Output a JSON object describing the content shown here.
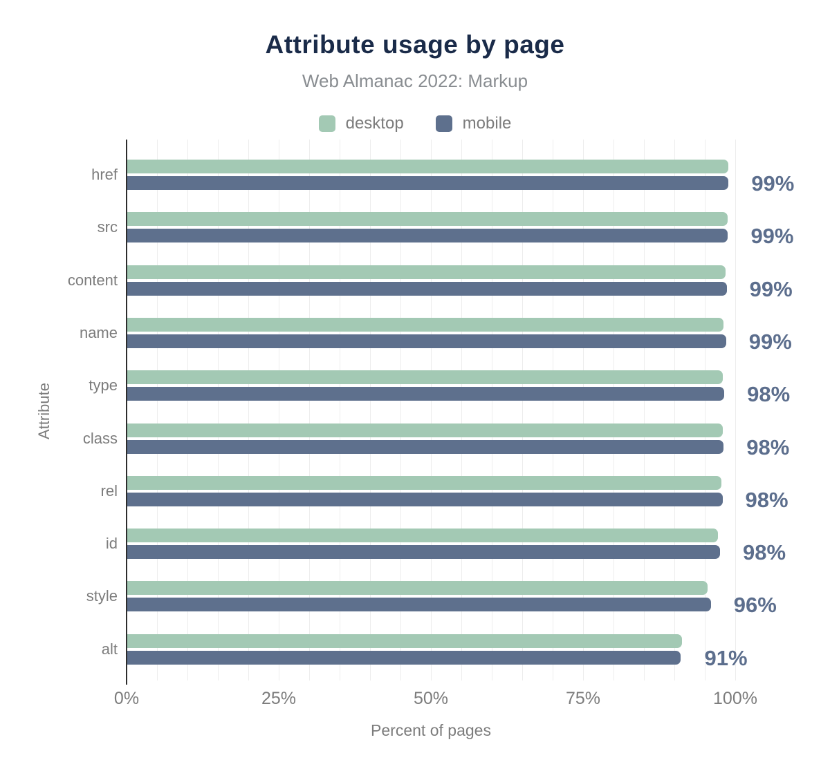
{
  "title": "Attribute usage by page",
  "subtitle": "Web Almanac 2022: Markup",
  "legend": {
    "items": [
      {
        "label": "desktop",
        "color": "#a3c9b4"
      },
      {
        "label": "mobile",
        "color": "#5e708d"
      }
    ]
  },
  "colors": {
    "desktop_bar": "#a3c9b4",
    "mobile_bar": "#5e708d",
    "value_label": "#5c6e8d",
    "title_text": "#1a2b49",
    "axis_text": "#7c7c7c",
    "gridline": "#ededed",
    "zero_axis": "#2d2d2d"
  },
  "chart_data": {
    "type": "bar",
    "orientation": "horizontal",
    "title": "Attribute usage by page",
    "subtitle": "Web Almanac 2022: Markup",
    "xlabel": "Percent of pages",
    "ylabel": "Attribute",
    "xlim": [
      0,
      100
    ],
    "x_tick_labels": [
      "0%",
      "25%",
      "50%",
      "75%",
      "100%"
    ],
    "x_tick_values": [
      0,
      25,
      50,
      75,
      100
    ],
    "grid": "vertical minor gridlines every 5%, legend top center",
    "categories": [
      "href",
      "src",
      "content",
      "name",
      "type",
      "class",
      "rel",
      "id",
      "style",
      "alt"
    ],
    "series": [
      {
        "name": "desktop",
        "color": "#a3c9b4",
        "values": [
          98.9,
          98.7,
          98.4,
          98.1,
          98.0,
          97.9,
          97.7,
          97.2,
          95.5,
          91.2
        ]
      },
      {
        "name": "mobile",
        "color": "#5e708d",
        "values": [
          98.9,
          98.8,
          98.6,
          98.5,
          98.2,
          98.1,
          97.9,
          97.5,
          96.0,
          91.0
        ]
      }
    ],
    "value_labels": [
      "99%",
      "99%",
      "99%",
      "99%",
      "98%",
      "98%",
      "98%",
      "98%",
      "96%",
      "91%"
    ]
  }
}
